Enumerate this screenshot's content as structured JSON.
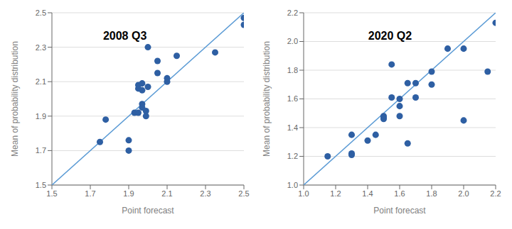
{
  "chart_data": [
    {
      "type": "scatter",
      "title": "2008 Q3",
      "x_label": "Point forecast",
      "y_label": "Mean of probability distribution",
      "xlim": [
        1.5,
        2.5
      ],
      "ylim": [
        1.5,
        2.5
      ],
      "xticks": [
        1.5,
        1.7,
        1.9,
        2.1,
        2.3,
        2.5
      ],
      "yticks": [
        1.5,
        1.7,
        1.9,
        2.1,
        2.3,
        2.5
      ],
      "grid": "y",
      "series": [
        {
          "type": "line",
          "color": "#5b9bd5",
          "x": [
            1.5,
            2.5
          ],
          "values": [
            1.5,
            2.5
          ]
        },
        {
          "type": "scatter",
          "color": "#2e5fa3",
          "x": [
            1.75,
            1.78,
            1.9,
            1.9,
            1.93,
            1.95,
            1.95,
            1.95,
            1.97,
            1.97,
            1.97,
            1.97,
            1.99,
            1.99,
            2.0,
            2.0,
            2.05,
            2.05,
            2.1,
            2.1,
            2.15,
            2.35,
            2.5,
            2.5
          ],
          "values": [
            1.75,
            1.88,
            1.76,
            1.7,
            1.92,
            1.92,
            2.06,
            2.08,
            1.95,
            1.97,
            2.05,
            2.09,
            1.9,
            1.93,
            2.3,
            2.07,
            2.15,
            2.22,
            2.1,
            2.12,
            2.25,
            2.27,
            2.47,
            2.43
          ]
        }
      ]
    },
    {
      "type": "scatter",
      "title": "2020 Q2",
      "x_label": "Point forecast",
      "y_label": "Mean of probability distribution",
      "xlim": [
        1.0,
        2.2
      ],
      "ylim": [
        1.0,
        2.2
      ],
      "xticks": [
        {
          "value": 1.0,
          "label": "1.0"
        },
        1.2,
        1.4,
        1.6,
        1.8,
        {
          "value": 2.0,
          "label": "2.0"
        },
        2.2
      ],
      "yticks": [
        {
          "value": 1.0,
          "label": "1.0"
        },
        1.2,
        1.4,
        1.6,
        1.8,
        {
          "value": 2.0,
          "label": "2.0"
        },
        2.2
      ],
      "grid": "y",
      "series": [
        {
          "type": "line",
          "color": "#5b9bd5",
          "x": [
            1.0,
            2.2
          ],
          "values": [
            1.0,
            2.2
          ]
        },
        {
          "type": "scatter",
          "color": "#2e5fa3",
          "x": [
            1.15,
            1.3,
            1.3,
            1.3,
            1.4,
            1.45,
            1.5,
            1.5,
            1.5,
            1.55,
            1.55,
            1.6,
            1.6,
            1.6,
            1.65,
            1.65,
            1.7,
            1.7,
            1.8,
            1.8,
            1.9,
            2.0,
            2.0,
            2.15,
            2.2
          ],
          "values": [
            1.2,
            1.22,
            1.21,
            1.35,
            1.31,
            1.35,
            1.48,
            1.46,
            1.47,
            1.61,
            1.84,
            1.6,
            1.55,
            1.48,
            1.71,
            1.29,
            1.61,
            1.71,
            1.79,
            1.7,
            1.95,
            1.95,
            1.45,
            1.79,
            2.13
          ]
        }
      ]
    }
  ]
}
